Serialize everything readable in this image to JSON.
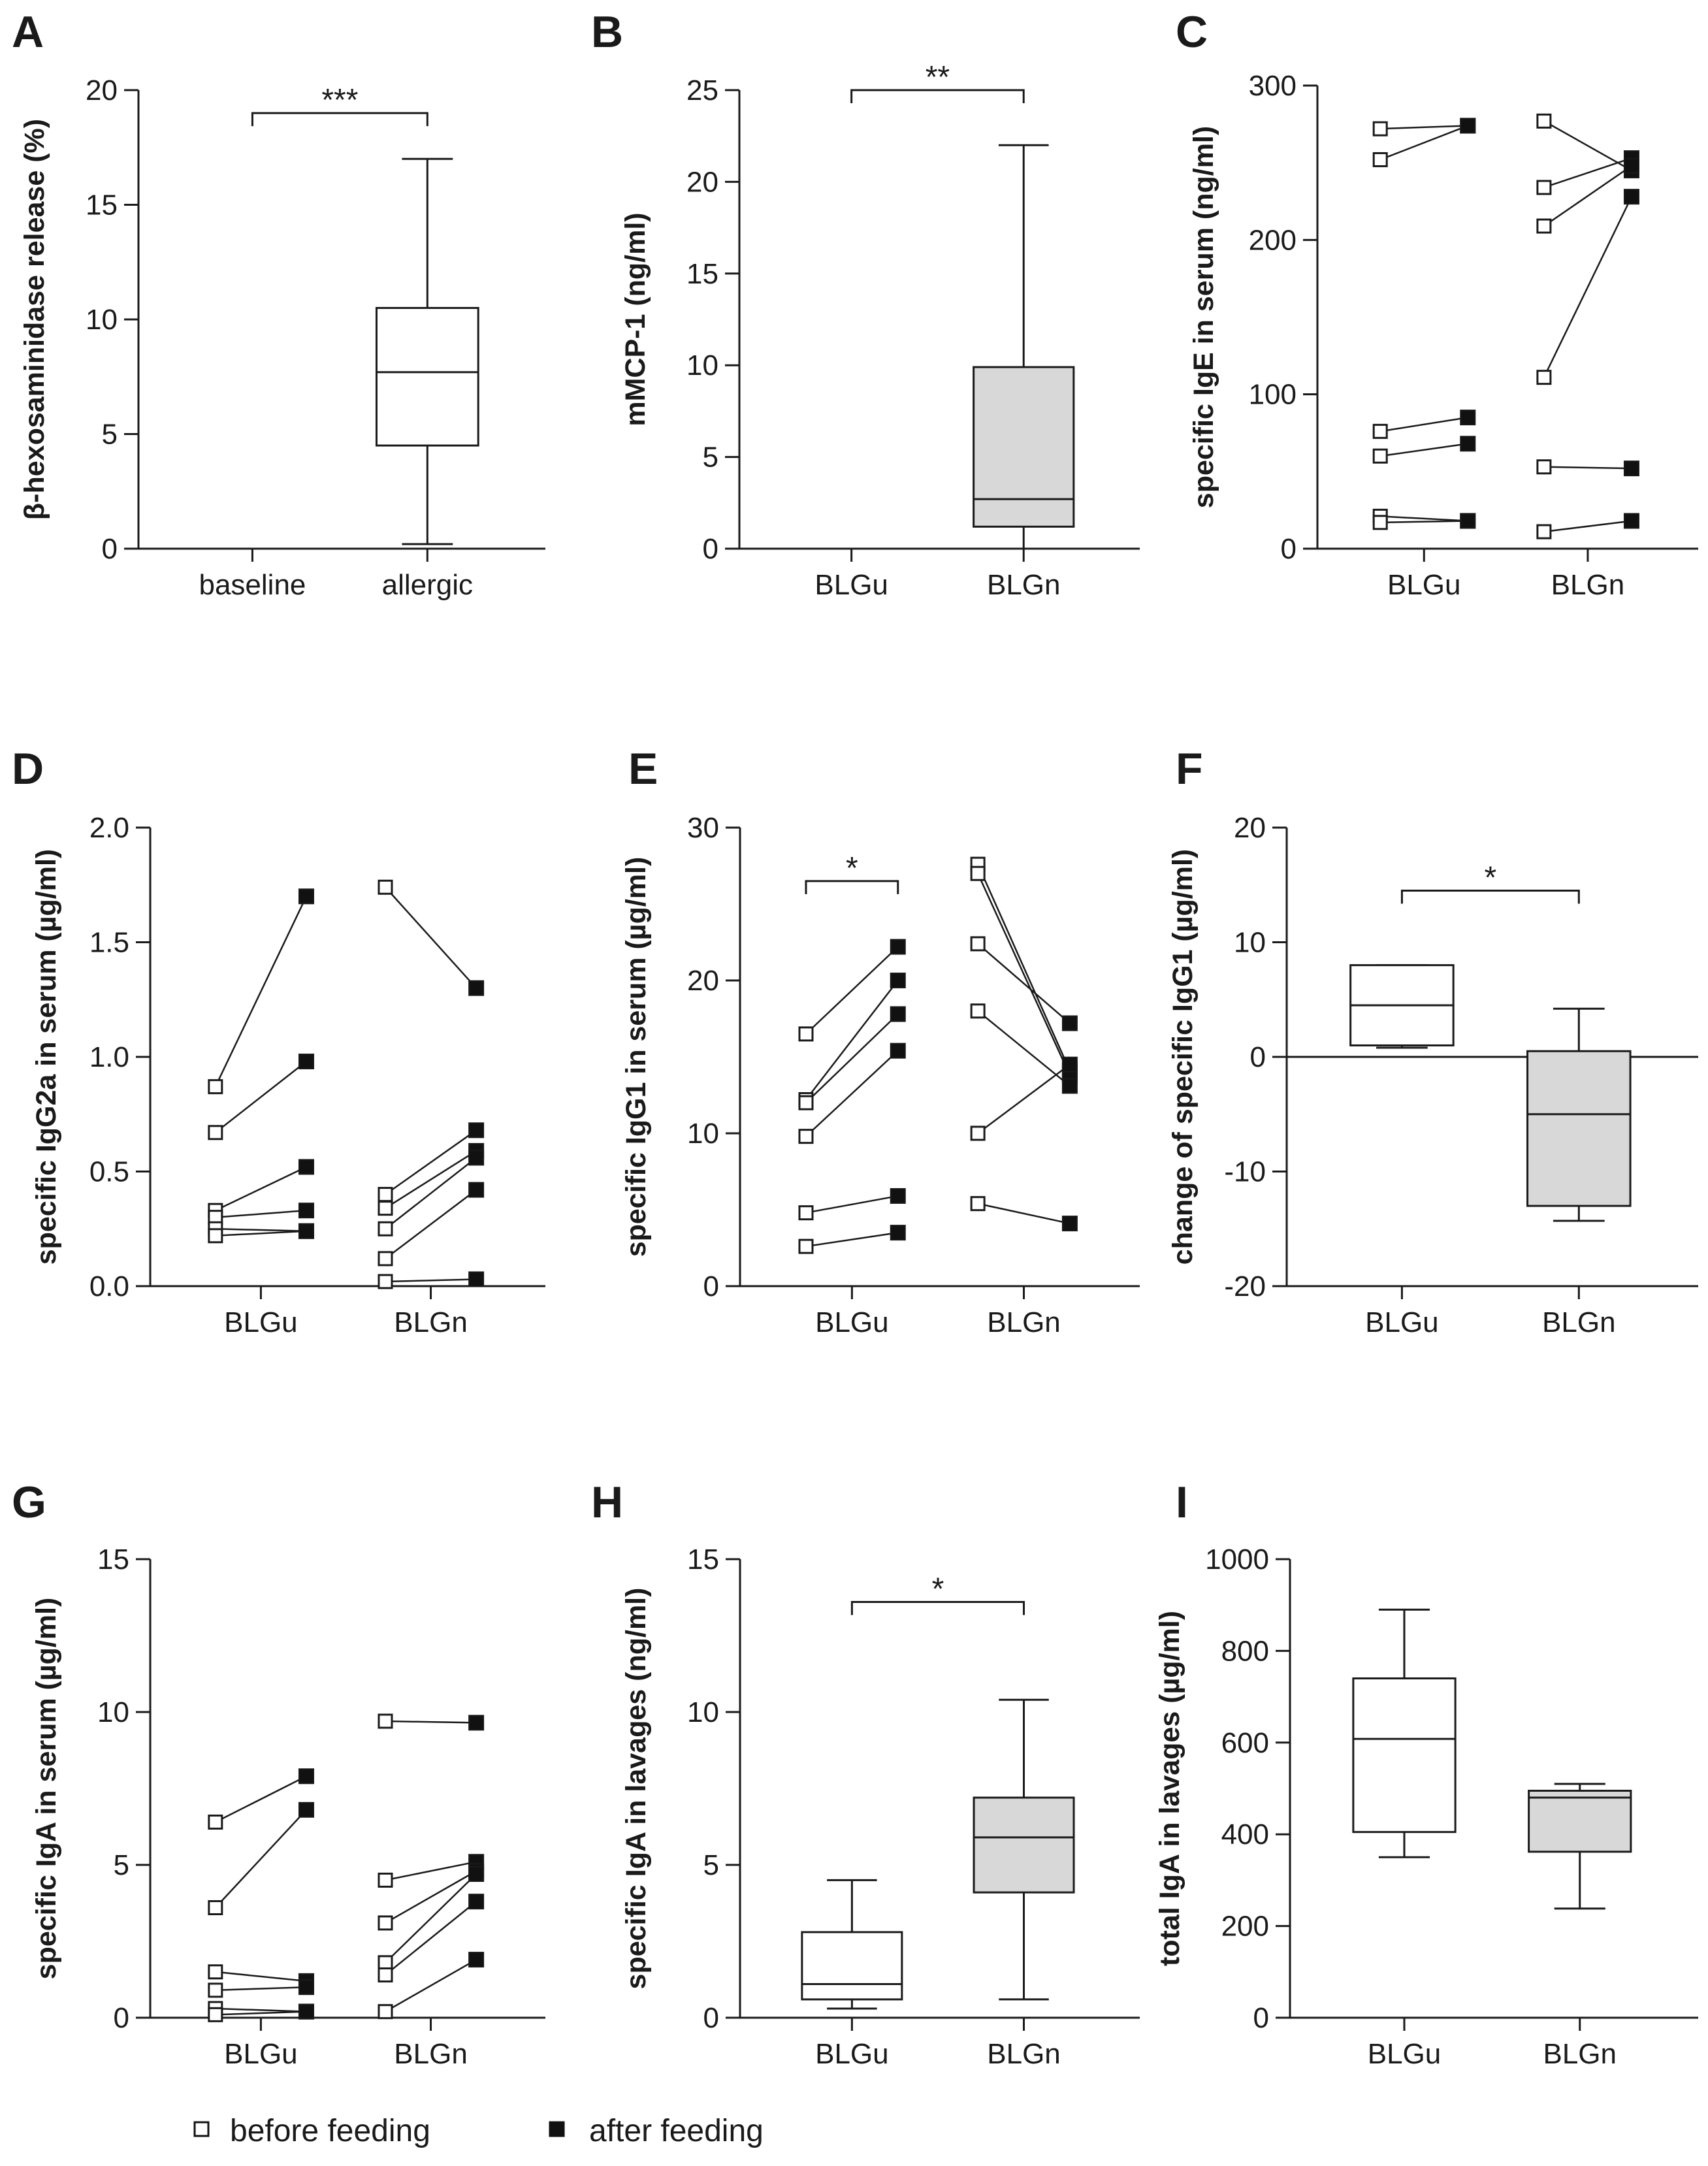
{
  "figure": {
    "legend": {
      "before_label": "before feeding",
      "after_label": "after feeding",
      "before_fill": "#ffffff",
      "after_fill": "#111111"
    },
    "colors": {
      "axis": "#1a1a1a",
      "box_gray": "#d8d8d8",
      "box_white": "#ffffff"
    }
  },
  "chart_data": [
    {
      "id": "A",
      "letter": "A",
      "type": "box",
      "ylabel": "β-hexosaminidase release (%)",
      "ylim": [
        0,
        20
      ],
      "yticks": [
        0,
        5,
        10,
        15,
        20
      ],
      "ytick_labels": [
        "0",
        "5",
        "10",
        "15",
        "20"
      ],
      "categories": [
        "baseline",
        "allergic"
      ],
      "boxes": [
        {
          "category": "baseline",
          "min": 0,
          "q1": 0,
          "median": 0,
          "q3": 0,
          "max": 0,
          "fill": "white"
        },
        {
          "category": "allergic",
          "min": 0.2,
          "q1": 4.5,
          "median": 7.7,
          "q3": 10.5,
          "max": 17,
          "fill": "white"
        }
      ],
      "significance": {
        "from": 0,
        "to": 1,
        "y": 19.0,
        "label": "***"
      }
    },
    {
      "id": "B",
      "letter": "B",
      "type": "box",
      "ylabel": "mMCP-1 (ng/ml)",
      "ylim": [
        0,
        25
      ],
      "yticks": [
        0,
        5,
        10,
        15,
        20,
        25
      ],
      "ytick_labels": [
        "0",
        "5",
        "10",
        "15",
        "20",
        "25"
      ],
      "categories": [
        "BLGu",
        "BLGn"
      ],
      "boxes": [
        {
          "category": "BLGu",
          "min": 0,
          "q1": 0,
          "median": 0,
          "q3": 0,
          "max": 0,
          "fill": "white"
        },
        {
          "category": "BLGn",
          "min": 0,
          "q1": 1.2,
          "median": 2.7,
          "q3": 9.9,
          "max": 22,
          "fill": "gray"
        }
      ],
      "significance": {
        "from": 0,
        "to": 1,
        "y": 25,
        "label": "**"
      }
    },
    {
      "id": "C",
      "letter": "C",
      "type": "paired",
      "ylabel": "specific IgE in serum (ng/ml)",
      "ylim": [
        0,
        300
      ],
      "yticks": [
        0,
        100,
        200,
        300
      ],
      "ytick_labels": [
        "0",
        "100",
        "200",
        "300"
      ],
      "categories": [
        "BLGu",
        "BLGn"
      ],
      "groups": [
        {
          "category": "BLGu",
          "pairs": [
            [
              272,
              274
            ],
            [
              252,
              274
            ],
            [
              76,
              85
            ],
            [
              60,
              68
            ],
            [
              21,
              18
            ],
            [
              17,
              18
            ]
          ]
        },
        {
          "category": "BLGn",
          "pairs": [
            [
              277,
              245
            ],
            [
              234,
              253
            ],
            [
              209,
              248
            ],
            [
              111,
              228
            ],
            [
              53,
              52
            ],
            [
              11,
              18
            ]
          ]
        }
      ]
    },
    {
      "id": "D",
      "letter": "D",
      "type": "paired",
      "ylabel": "specific IgG2a in serum (µg/ml)",
      "ylim": [
        0,
        2.0
      ],
      "yticks": [
        0,
        0.5,
        1.0,
        1.5,
        2.0
      ],
      "ytick_labels": [
        "0.0",
        "0.5",
        "1.0",
        "1.5",
        "2.0"
      ],
      "categories": [
        "BLGu",
        "BLGn"
      ],
      "groups": [
        {
          "category": "BLGu",
          "pairs": [
            [
              0.87,
              1.7
            ],
            [
              0.67,
              0.98
            ],
            [
              0.33,
              0.52
            ],
            [
              0.3,
              0.33
            ],
            [
              0.25,
              0.24
            ],
            [
              0.22,
              0.24
            ]
          ]
        },
        {
          "category": "BLGn",
          "pairs": [
            [
              1.74,
              1.3
            ],
            [
              0.4,
              0.68
            ],
            [
              0.34,
              0.59
            ],
            [
              0.25,
              0.56
            ],
            [
              0.12,
              0.42
            ],
            [
              0.02,
              0.03
            ]
          ]
        }
      ]
    },
    {
      "id": "E",
      "letter": "E",
      "type": "paired",
      "ylabel": "specific IgG1 in serum (µg/ml)",
      "ylim": [
        0,
        30
      ],
      "yticks": [
        0,
        10,
        20,
        30
      ],
      "ytick_labels": [
        "0",
        "10",
        "20",
        "30"
      ],
      "categories": [
        "BLGu",
        "BLGn"
      ],
      "groups": [
        {
          "category": "BLGu",
          "pairs": [
            [
              16.5,
              22.2
            ],
            [
              12.2,
              20.0
            ],
            [
              12.0,
              17.8
            ],
            [
              9.8,
              15.4
            ],
            [
              4.8,
              5.9
            ],
            [
              2.6,
              3.5
            ]
          ]
        },
        {
          "category": "BLGn",
          "pairs": [
            [
              27.6,
              14.1
            ],
            [
              27.0,
              13.8
            ],
            [
              22.4,
              17.2
            ],
            [
              18.0,
              13.1
            ],
            [
              10.0,
              14.5
            ],
            [
              5.4,
              4.1
            ]
          ]
        }
      ],
      "significance": {
        "from_x": 0.7,
        "to_x": 1.3,
        "y": 26.5,
        "label": "*"
      }
    },
    {
      "id": "F",
      "letter": "F",
      "type": "box",
      "ylabel": "change of specific IgG1 (µg/ml)",
      "ylim": [
        -20,
        20
      ],
      "yticks": [
        -20,
        -10,
        0,
        10,
        20
      ],
      "ytick_labels": [
        "-20",
        "-10",
        "0",
        "10",
        "20"
      ],
      "zero_line": true,
      "categories": [
        "BLGu",
        "BLGn"
      ],
      "boxes": [
        {
          "category": "BLGu",
          "min": 0.8,
          "q1": 1.0,
          "median": 4.5,
          "q3": 8.0,
          "max": 8.0,
          "fill": "white"
        },
        {
          "category": "BLGn",
          "min": -14.3,
          "q1": -13.0,
          "median": -5.0,
          "q3": 0.5,
          "max": 4.2,
          "fill": "gray"
        }
      ],
      "significance": {
        "from": 0,
        "to": 1,
        "y": 14.5,
        "label": "*"
      }
    },
    {
      "id": "G",
      "letter": "G",
      "type": "paired",
      "ylabel": "specific IgA in serum (µg/ml)",
      "ylim": [
        0,
        15
      ],
      "yticks": [
        0,
        5,
        10,
        15
      ],
      "ytick_labels": [
        "0",
        "5",
        "10",
        "15"
      ],
      "categories": [
        "BLGu",
        "BLGn"
      ],
      "groups": [
        {
          "category": "BLGu",
          "pairs": [
            [
              6.4,
              7.9
            ],
            [
              3.6,
              6.8
            ],
            [
              1.5,
              1.2
            ],
            [
              0.9,
              1.0
            ],
            [
              0.3,
              0.2
            ],
            [
              0.1,
              0.2
            ]
          ]
        },
        {
          "category": "BLGn",
          "pairs": [
            [
              9.7,
              9.65
            ],
            [
              4.5,
              5.1
            ],
            [
              3.1,
              4.8
            ],
            [
              1.8,
              4.7
            ],
            [
              1.4,
              3.8
            ],
            [
              0.2,
              1.9
            ]
          ]
        }
      ]
    },
    {
      "id": "H",
      "letter": "H",
      "type": "box",
      "ylabel": "specific IgA in lavages (ng/ml)",
      "ylim": [
        0,
        15
      ],
      "yticks": [
        0,
        5,
        10,
        15
      ],
      "ytick_labels": [
        "0",
        "5",
        "10",
        "15"
      ],
      "categories": [
        "BLGu",
        "BLGn"
      ],
      "boxes": [
        {
          "category": "BLGu",
          "min": 0.3,
          "q1": 0.6,
          "median": 1.1,
          "q3": 2.8,
          "max": 4.5,
          "fill": "white"
        },
        {
          "category": "BLGn",
          "min": 0.6,
          "q1": 4.1,
          "median": 5.9,
          "q3": 7.2,
          "max": 10.4,
          "fill": "gray"
        }
      ],
      "significance": {
        "from": 0,
        "to": 1,
        "y": 13.6,
        "label": "*"
      }
    },
    {
      "id": "I",
      "letter": "I",
      "type": "box",
      "ylabel": "total IgA in lavages (µg/ml)",
      "ylim": [
        0,
        1000
      ],
      "yticks": [
        0,
        200,
        400,
        600,
        800,
        1000
      ],
      "ytick_labels": [
        "0",
        "200",
        "400",
        "600",
        "800",
        "1000"
      ],
      "categories": [
        "BLGu",
        "BLGn"
      ],
      "boxes": [
        {
          "category": "BLGu",
          "min": 350,
          "q1": 405,
          "median": 608,
          "q3": 740,
          "max": 890,
          "fill": "white"
        },
        {
          "category": "BLGn",
          "min": 238,
          "q1": 362,
          "median": 480,
          "q3": 495,
          "max": 510,
          "fill": "gray"
        }
      ]
    }
  ]
}
